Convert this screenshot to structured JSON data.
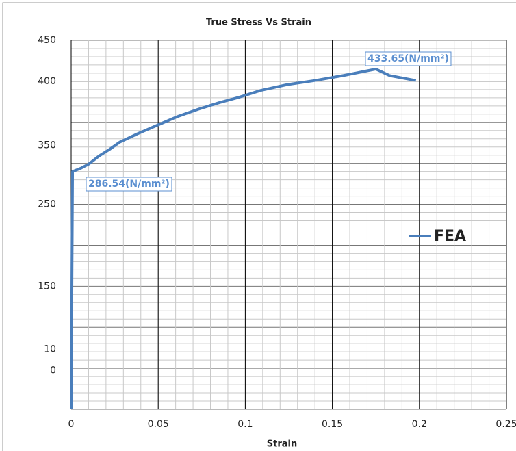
{
  "chart_data": {
    "type": "line",
    "title": "True Stress Vs Strain",
    "x_label": "Strain",
    "x": [
      0,
      0.0008,
      0.0055,
      0.01,
      0.016,
      0.022,
      0.028,
      0.038,
      0.05,
      0.061,
      0.073,
      0.085,
      0.097,
      0.109,
      0.124,
      0.14,
      0.156,
      0.168,
      0.175,
      0.183,
      0.198
    ],
    "series": [
      {
        "name": "FEA",
        "color": "#4a7ebb",
        "values": [
          0,
          290,
          294,
          299,
          309,
          317,
          326,
          336,
          347,
          357,
          366,
          374,
          381,
          389,
          396,
          401,
          407,
          412,
          415,
          407,
          401
        ]
      }
    ],
    "annotations": [
      "286.54(N/mm²)",
      "433.65(N/mm²)"
    ],
    "xlim": [
      0,
      0.25
    ],
    "xticks": [
      0,
      0.05,
      0.1,
      0.15,
      0.2,
      0.25
    ],
    "ylim": [
      0,
      450
    ],
    "yticks": [
      450,
      400,
      {
        "value": 322,
        "label": "350"
      },
      250,
      {
        "value": 150,
        "label": "150"
      },
      {
        "value": 73,
        "label": "10"
      },
      {
        "value": 47,
        "label": "0"
      }
    ],
    "grid": true,
    "legend": "right"
  }
}
